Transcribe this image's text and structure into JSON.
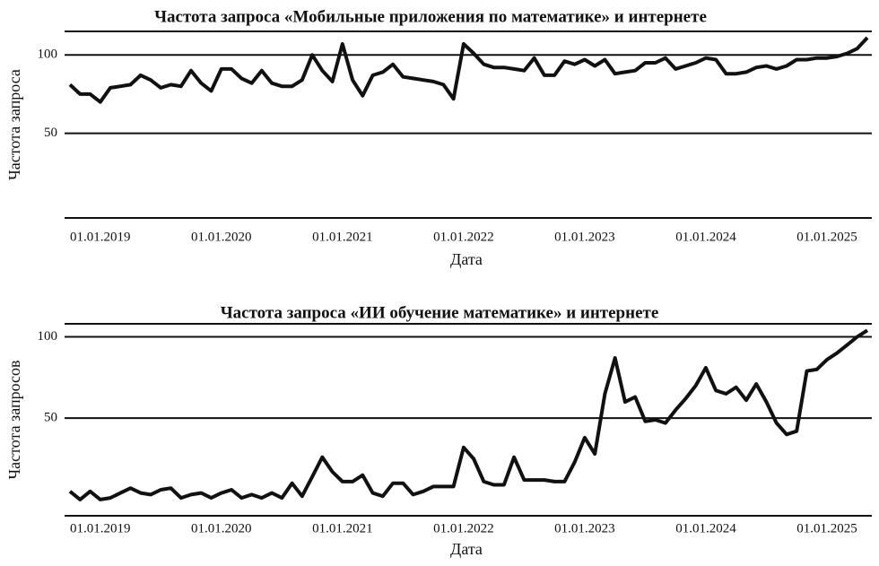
{
  "chart_data": [
    {
      "type": "line",
      "title": "Частота запроса «Мобильные приложения по математике» и интернете",
      "xlabel": "Дата",
      "ylabel": "Частота запроса",
      "categories": [
        null,
        null,
        null,
        "01.01.2019",
        null,
        null,
        null,
        null,
        null,
        null,
        null,
        null,
        null,
        null,
        null,
        "01.01.2020",
        null,
        null,
        null,
        null,
        null,
        null,
        null,
        null,
        null,
        null,
        null,
        "01.01.2021",
        null,
        null,
        null,
        null,
        null,
        null,
        null,
        null,
        null,
        null,
        null,
        "01.01.2022",
        null,
        null,
        null,
        null,
        null,
        null,
        null,
        null,
        null,
        null,
        null,
        "01.01.2023",
        null,
        null,
        null,
        null,
        null,
        null,
        null,
        null,
        null,
        null,
        null,
        "01.01.2024",
        null,
        null,
        null,
        null,
        null,
        null,
        null,
        null,
        null,
        null,
        null,
        "01.01.2025",
        null,
        null,
        null,
        null
      ],
      "series": [
        {
          "name": "Частота запроса",
          "color": "#111111",
          "values": [
            81,
            75,
            75,
            70,
            79,
            80,
            81,
            87,
            84,
            79,
            81,
            80,
            90,
            82,
            77,
            91,
            91,
            85,
            82,
            90,
            82,
            80,
            80,
            84,
            100,
            90,
            83,
            107,
            84,
            74,
            87,
            89,
            94,
            86,
            85,
            84,
            83,
            81,
            72,
            107,
            101,
            94,
            92,
            92,
            91,
            90,
            98,
            87,
            87,
            96,
            94,
            97,
            93,
            97,
            88,
            89,
            90,
            95,
            95,
            98,
            91,
            93,
            95,
            98,
            97,
            88,
            88,
            89,
            92,
            93,
            91,
            93,
            97,
            97,
            98,
            98,
            99,
            101,
            104,
            111
          ]
        }
      ],
      "ylim": [
        -4,
        115
      ],
      "yticks": [
        50,
        100
      ],
      "grid": true
    },
    {
      "type": "line",
      "title": "Частота запроса «ИИ обучение математике» и интернете",
      "xlabel": "Дата",
      "ylabel": "Частота запросов",
      "categories": [
        null,
        null,
        null,
        "01.01.2019",
        null,
        null,
        null,
        null,
        null,
        null,
        null,
        null,
        null,
        null,
        null,
        "01.01.2020",
        null,
        null,
        null,
        null,
        null,
        null,
        null,
        null,
        null,
        null,
        null,
        "01.01.2021",
        null,
        null,
        null,
        null,
        null,
        null,
        null,
        null,
        null,
        null,
        null,
        "01.01.2022",
        null,
        null,
        null,
        null,
        null,
        null,
        null,
        null,
        null,
        null,
        null,
        "01.01.2023",
        null,
        null,
        null,
        null,
        null,
        null,
        null,
        null,
        null,
        null,
        null,
        "01.01.2024",
        null,
        null,
        null,
        null,
        null,
        null,
        null,
        null,
        null,
        null,
        null,
        "01.01.2025",
        null,
        null,
        null,
        null
      ],
      "series": [
        {
          "name": "Частота запросов",
          "color": "#111111",
          "values": [
            5,
            0,
            5,
            0,
            1,
            4,
            7,
            4,
            3,
            6,
            7,
            1,
            3,
            4,
            1,
            4,
            6,
            1,
            3,
            1,
            4,
            1,
            10,
            2,
            14,
            26,
            17,
            11,
            11,
            15,
            4,
            2,
            10,
            10,
            3,
            5,
            8,
            8,
            8,
            32,
            25,
            11,
            9,
            9,
            26,
            12,
            12,
            12,
            11,
            11,
            23,
            38,
            28,
            65,
            87,
            60,
            63,
            48,
            49,
            47,
            55,
            62,
            70,
            81,
            67,
            65,
            69,
            61,
            71,
            60,
            47,
            40,
            42,
            79,
            80,
            86,
            90,
            95,
            100,
            104
          ]
        }
      ],
      "ylim": [
        -10,
        108
      ],
      "yticks": [
        50,
        100
      ],
      "grid": true
    }
  ]
}
